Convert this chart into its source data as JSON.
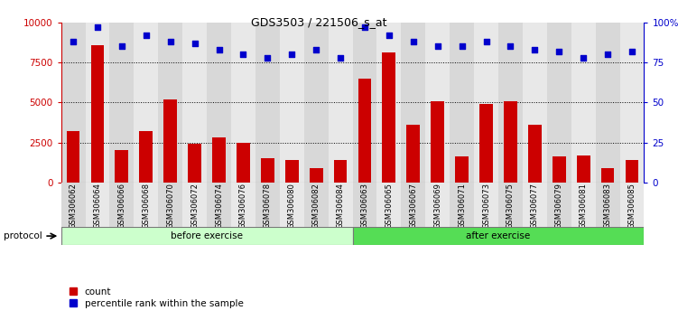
{
  "title": "GDS3503 / 221506_s_at",
  "categories": [
    "GSM306062",
    "GSM306064",
    "GSM306066",
    "GSM306068",
    "GSM306070",
    "GSM306072",
    "GSM306074",
    "GSM306076",
    "GSM306078",
    "GSM306080",
    "GSM306082",
    "GSM306084",
    "GSM306063",
    "GSM306065",
    "GSM306067",
    "GSM306069",
    "GSM306071",
    "GSM306073",
    "GSM306075",
    "GSM306077",
    "GSM306079",
    "GSM306081",
    "GSM306083",
    "GSM306085"
  ],
  "bar_values": [
    3200,
    8600,
    2000,
    3200,
    5200,
    2400,
    2800,
    2500,
    1500,
    1400,
    900,
    1400,
    6500,
    8100,
    3600,
    5100,
    1600,
    4900,
    5100,
    3600,
    1600,
    1700,
    900,
    1400
  ],
  "dot_values": [
    88,
    97,
    85,
    92,
    88,
    87,
    83,
    80,
    78,
    80,
    83,
    78,
    97,
    92,
    88,
    85,
    85,
    88,
    85,
    83,
    82,
    78,
    80,
    82
  ],
  "bar_color": "#cc0000",
  "dot_color": "#0000cc",
  "ylim_left": [
    0,
    10000
  ],
  "ylim_right": [
    0,
    100
  ],
  "yticks_left": [
    0,
    2500,
    5000,
    7500,
    10000
  ],
  "ytick_labels_left": [
    "0",
    "2500",
    "5000",
    "7500",
    "10000"
  ],
  "yticks_right": [
    0,
    25,
    50,
    75,
    100
  ],
  "ytick_labels_right": [
    "0",
    "25",
    "50",
    "75",
    "100%"
  ],
  "grid_values": [
    2500,
    5000,
    7500
  ],
  "before_count": 12,
  "after_count": 12,
  "before_label": "before exercise",
  "after_label": "after exercise",
  "protocol_label": "protocol",
  "before_color_light": "#ccffcc",
  "after_color": "#55dd55",
  "legend_count": "count",
  "legend_pct": "percentile rank within the sample"
}
